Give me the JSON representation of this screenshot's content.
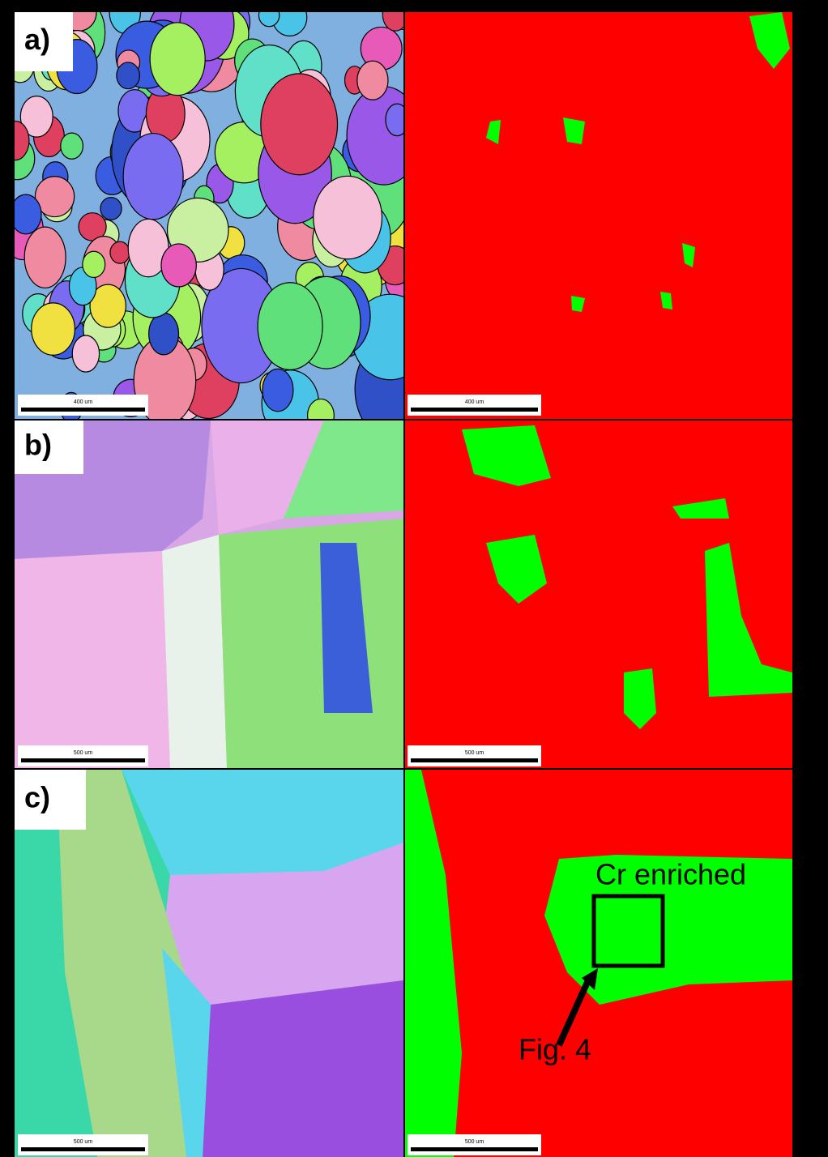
{
  "panels": [
    {
      "label": "a)",
      "left_scale": "400 um",
      "right_scale": "400 um"
    },
    {
      "label": "b)",
      "left_scale": "500 um",
      "right_scale": "500 um"
    },
    {
      "label": "c)",
      "left_scale": "500 um",
      "right_scale": "500 um"
    }
  ],
  "annotations": {
    "region": "Cr enriched",
    "arrow": "Fig. 4"
  }
}
